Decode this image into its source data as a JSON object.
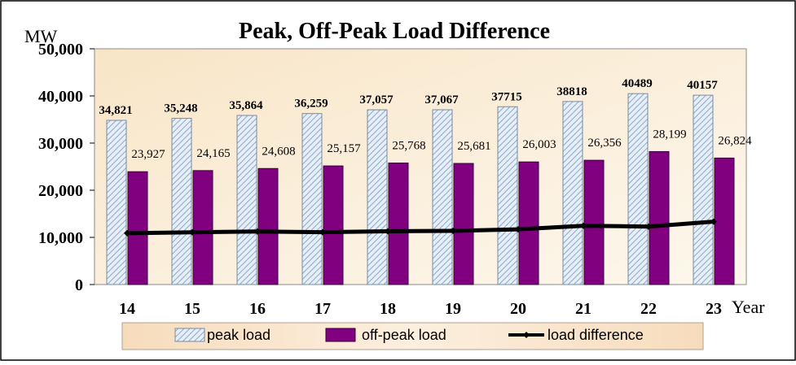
{
  "chart_data": {
    "type": "bar",
    "title": "Peak, Off-Peak Load Difference",
    "ylabel": "MW",
    "xlabel": "Year",
    "ylim": [
      0,
      50000
    ],
    "yticks": [
      0,
      10000,
      20000,
      30000,
      40000,
      50000
    ],
    "ytick_labels": [
      "0",
      "10,000",
      "20,000",
      "30,000",
      "40,000",
      "50,000"
    ],
    "categories": [
      "14",
      "15",
      "16",
      "17",
      "18",
      "19",
      "20",
      "21",
      "22",
      "23"
    ],
    "series": [
      {
        "name": "peak load",
        "kind": "bar",
        "values": [
          34821,
          35248,
          35864,
          36259,
          37057,
          37067,
          37715,
          38818,
          40489,
          40157
        ],
        "labels": [
          "34,821",
          "35,248",
          "35,864",
          "36,259",
          "37,057",
          "37,067",
          "37715",
          "38818",
          "40489",
          "40157"
        ]
      },
      {
        "name": "off-peak load",
        "kind": "bar",
        "values": [
          23927,
          24165,
          24608,
          25157,
          25768,
          25681,
          26003,
          26356,
          28199,
          26824
        ],
        "labels": [
          "23,927",
          "24,165",
          "24,608",
          "25,157",
          "25,768",
          "25,681",
          "26,003",
          "26,356",
          "28,199",
          "26,824"
        ]
      },
      {
        "name": "load difference",
        "kind": "line",
        "values": [
          10894,
          11083,
          11256,
          11102,
          11289,
          11386,
          11712,
          12462,
          12290,
          13333
        ]
      }
    ],
    "legend_position": "bottom",
    "grid": false
  },
  "colors": {
    "plot_bg_start": "#f8e5c6",
    "plot_bg_end": "#fdf7ec",
    "peak_fill": "#e6eef8",
    "peak_hatch": "#8ea8c8",
    "peak_border": "#7a8aa0",
    "offpeak_fill": "#800080",
    "offpeak_border": "#3a003a",
    "line": "#000000",
    "legend_bg": "#f9e2c4"
  }
}
